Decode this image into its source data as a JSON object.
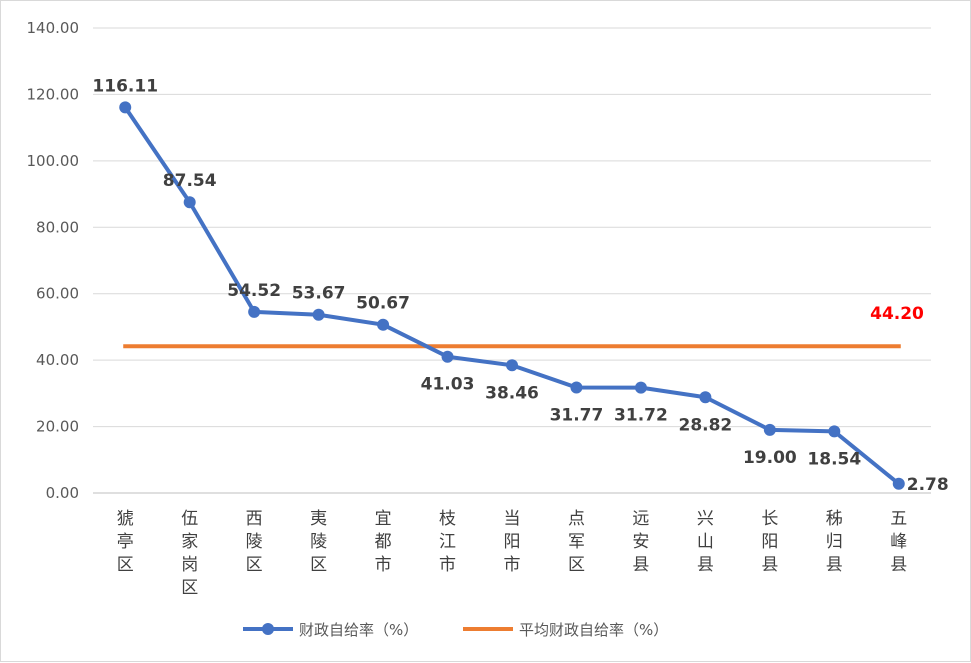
{
  "chart_data": {
    "type": "line",
    "categories": [
      "猇亭区",
      "伍家岗区",
      "西陵区",
      "夷陵区",
      "宜都市",
      "枝江市",
      "当阳市",
      "点军区",
      "远安县",
      "兴山县",
      "长阳县",
      "秭归县",
      "五峰县"
    ],
    "series": [
      {
        "name": "财政自给率（%）",
        "values": [
          116.11,
          87.54,
          54.52,
          53.67,
          50.67,
          41.03,
          38.46,
          31.77,
          31.72,
          28.82,
          19.0,
          18.54,
          2.78
        ],
        "labels": [
          "116.11",
          "87.54",
          "54.52",
          "53.67",
          "50.67",
          "41.03",
          "38.46",
          "31.77",
          "31.72",
          "28.82",
          "19.00",
          "18.54",
          "2.78"
        ],
        "color": "#4472c4"
      },
      {
        "name": "平均财政自给率（%）",
        "value": 44.2,
        "label": "44.20",
        "color": "#ed7d31",
        "label_color": "#ff0000"
      }
    ],
    "yticks": [
      "0.00",
      "20.00",
      "40.00",
      "60.00",
      "80.00",
      "100.00",
      "120.00",
      "140.00"
    ],
    "ylim": [
      0,
      140
    ],
    "grid": true,
    "legend": "bottom"
  }
}
